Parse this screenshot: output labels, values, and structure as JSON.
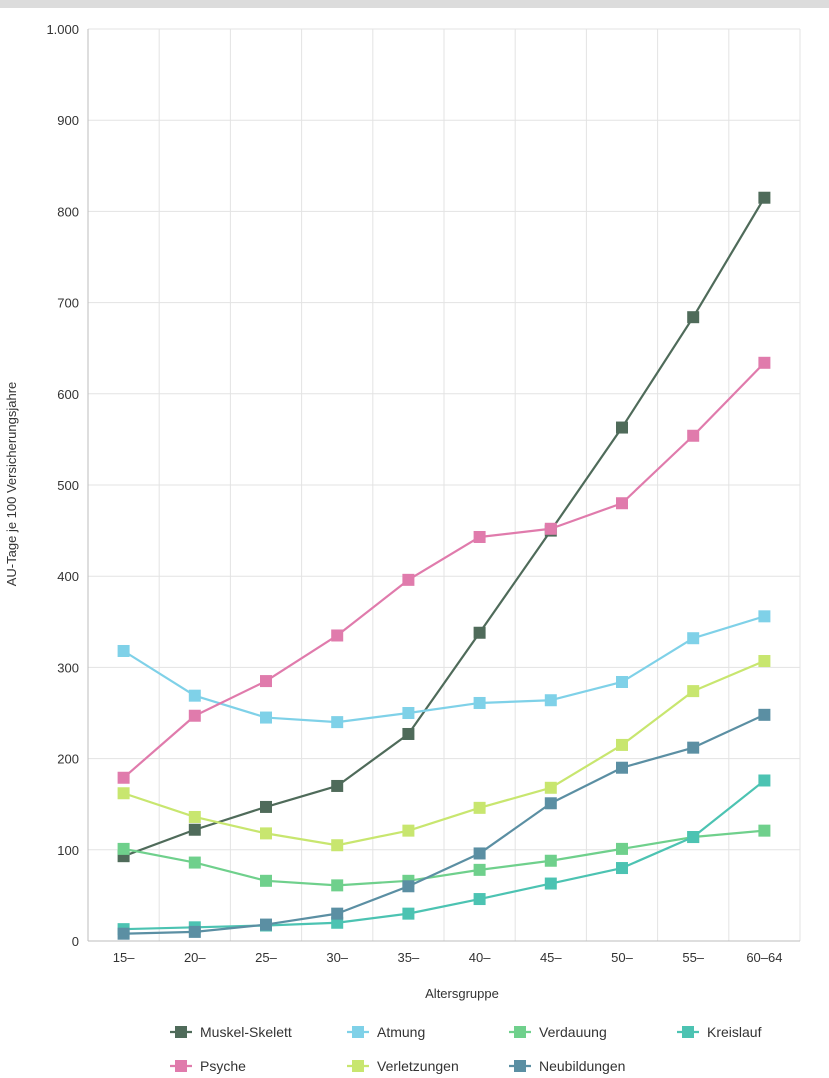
{
  "chart_data": {
    "type": "line",
    "xlabel": "Altersgruppe",
    "ylabel": "AU-Tage je 100 Versicherungsjahre",
    "ylim": [
      0,
      1000
    ],
    "y_ticks": [
      {
        "value": 0,
        "label": "0"
      },
      {
        "value": 100,
        "label": "100"
      },
      {
        "value": 200,
        "label": "200"
      },
      {
        "value": 300,
        "label": "300"
      },
      {
        "value": 400,
        "label": "400"
      },
      {
        "value": 500,
        "label": "500"
      },
      {
        "value": 600,
        "label": "600"
      },
      {
        "value": 700,
        "label": "700"
      },
      {
        "value": 800,
        "label": "800"
      },
      {
        "value": 900,
        "label": "900"
      },
      {
        "value": 1000,
        "label": "1.000"
      }
    ],
    "grid": true,
    "legend_position": "bottom",
    "categories": [
      "15–",
      "20–",
      "25–",
      "30–",
      "35–",
      "40–",
      "45–",
      "50–",
      "55–",
      "60–64"
    ],
    "series": [
      {
        "name": "Muskel-Skelett",
        "color": "#4f6b5a",
        "values": [
          93,
          122,
          147,
          170,
          227,
          338,
          450,
          563,
          684,
          815
        ]
      },
      {
        "name": "Atmung",
        "color": "#7fd1e8",
        "values": [
          318,
          269,
          245,
          240,
          250,
          261,
          264,
          284,
          332,
          356
        ]
      },
      {
        "name": "Verdauung",
        "color": "#6fd08c",
        "values": [
          101,
          86,
          66,
          61,
          66,
          78,
          88,
          101,
          114,
          121
        ]
      },
      {
        "name": "Kreislauf",
        "color": "#4cc3b2",
        "values": [
          13,
          15,
          17,
          20,
          30,
          46,
          63,
          80,
          114,
          176
        ]
      },
      {
        "name": "Psyche",
        "color": "#e07bac",
        "values": [
          179,
          247,
          285,
          335,
          396,
          443,
          452,
          480,
          554,
          634
        ]
      },
      {
        "name": "Verletzungen",
        "color": "#c8e66f",
        "values": [
          162,
          136,
          118,
          105,
          121,
          146,
          168,
          215,
          274,
          307
        ]
      },
      {
        "name": "Neubildungen",
        "color": "#5b8fa3",
        "values": [
          8,
          10,
          18,
          30,
          60,
          96,
          151,
          190,
          212,
          248
        ]
      }
    ]
  }
}
